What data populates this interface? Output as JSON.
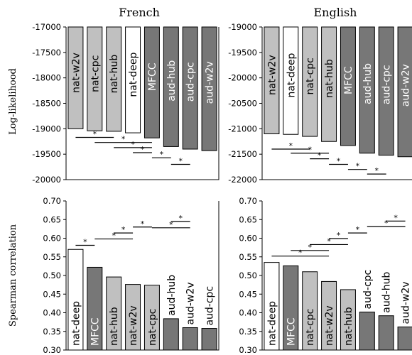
{
  "colors": {
    "white": "#ffffff",
    "light": "#c0c0c0",
    "dark": "#777777",
    "outline": "#000000"
  },
  "chart_data": [
    {
      "type": "bar",
      "title": "French",
      "ylabel": "Log-likelihood",
      "ylim": [
        -20000,
        -17000
      ],
      "yticks": [
        -17000,
        -17500,
        -18000,
        -18500,
        -19000,
        -19500,
        -20000
      ],
      "ytick_labels": [
        "-17000",
        "-17500",
        "-18000",
        "-18500",
        "-19000",
        "-19500",
        "-20000"
      ],
      "categories": [
        "nat-w2v",
        "nat-cpc",
        "nat-hub",
        "nat-deep",
        "MFCC",
        "aud-hub",
        "aud-cpc",
        "aud-w2v"
      ],
      "values": [
        -19000,
        -19040,
        -19050,
        -19080,
        -19180,
        -19350,
        -19400,
        -19430
      ],
      "bar_colors": [
        "light",
        "light",
        "light",
        "white",
        "dark",
        "dark",
        "dark",
        "dark"
      ],
      "significance": [
        {
          "from": 0,
          "to": 2,
          "level": -19170
        },
        {
          "from": 1,
          "to": 4,
          "level": -19270
        },
        {
          "from": 2,
          "to": 4,
          "level": -19370
        },
        {
          "from": 3,
          "to": 4,
          "level": -19470
        },
        {
          "from": 4,
          "to": 5,
          "level": -19570
        },
        {
          "from": 5,
          "to": 6,
          "level": -19700
        }
      ]
    },
    {
      "type": "bar",
      "title": "English",
      "ylabel": "",
      "ylim": [
        -22000,
        -19000
      ],
      "yticks": [
        -19000,
        -19500,
        -20000,
        -20500,
        -21000,
        -21500,
        -22000
      ],
      "ytick_labels": [
        "-19000",
        "-19500",
        "-20000",
        "-20500",
        "-21000",
        "-21500",
        "-22000"
      ],
      "categories": [
        "nat-w2v",
        "nat-deep",
        "nat-cpc",
        "nat-hub",
        "MFCC",
        "aud-hub",
        "aud-cpc",
        "aud-w2v"
      ],
      "values": [
        -21100,
        -21110,
        -21150,
        -21250,
        -21330,
        -21480,
        -21520,
        -21550
      ],
      "bar_colors": [
        "light",
        "white",
        "light",
        "light",
        "dark",
        "dark",
        "dark",
        "dark"
      ],
      "significance": [
        {
          "from": 0,
          "to": 2,
          "level": -21400
        },
        {
          "from": 1,
          "to": 3,
          "level": -21480
        },
        {
          "from": 2,
          "to": 3,
          "level": -21590
        },
        {
          "from": 3,
          "to": 4,
          "level": -21700
        },
        {
          "from": 4,
          "to": 5,
          "level": -21800
        },
        {
          "from": 5,
          "to": 6,
          "level": -21890
        }
      ]
    },
    {
      "type": "bar",
      "title": "",
      "ylabel": "Spearman correlation",
      "ylim": [
        0.3,
        0.7
      ],
      "yticks": [
        0.3,
        0.35,
        0.4,
        0.45,
        0.5,
        0.55,
        0.6,
        0.65,
        0.7
      ],
      "ytick_labels": [
        "0.30",
        "0.35",
        "0.40",
        "0.45",
        "0.50",
        "0.55",
        "0.60",
        "0.65",
        "0.70"
      ],
      "categories": [
        "nat-deep",
        "MFCC",
        "nat-hub",
        "nat-w2v",
        "nat-cpc",
        "aud-hub",
        "aud-w2v",
        "aud-cpc"
      ],
      "values": [
        0.57,
        0.522,
        0.496,
        0.476,
        0.474,
        0.384,
        0.36,
        0.358
      ],
      "bar_colors": [
        "white",
        "dark",
        "light",
        "light",
        "light",
        "dark",
        "dark",
        "dark"
      ],
      "significance": [
        {
          "from": 0,
          "to": 1,
          "level": 0.581
        },
        {
          "from": 1,
          "to": 3,
          "level": 0.598
        },
        {
          "from": 2,
          "to": 3,
          "level": 0.614
        },
        {
          "from": 3,
          "to": 4,
          "level": 0.63
        },
        {
          "from": 4,
          "to": 6,
          "level": 0.628
        },
        {
          "from": 5,
          "to": 6,
          "level": 0.645
        }
      ]
    },
    {
      "type": "bar",
      "title": "",
      "ylabel": "",
      "ylim": [
        0.3,
        0.7
      ],
      "yticks": [
        0.3,
        0.35,
        0.4,
        0.45,
        0.5,
        0.55,
        0.6,
        0.65,
        0.7
      ],
      "ytick_labels": [
        "0.30",
        "0.35",
        "0.40",
        "0.45",
        "0.50",
        "0.55",
        "0.60",
        "0.65",
        "0.70"
      ],
      "categories": [
        "nat-deep",
        "MFCC",
        "nat-cpc",
        "nat-w2v",
        "nat-hub",
        "aud-cpc",
        "aud-hub",
        "aud-w2v"
      ],
      "values": [
        0.535,
        0.526,
        0.51,
        0.484,
        0.462,
        0.402,
        0.392,
        0.362
      ],
      "bar_colors": [
        "white",
        "dark",
        "light",
        "light",
        "light",
        "dark",
        "dark",
        "dark"
      ],
      "significance": [
        {
          "from": 0,
          "to": 3,
          "level": 0.552
        },
        {
          "from": 1,
          "to": 3,
          "level": 0.567
        },
        {
          "from": 2,
          "to": 4,
          "level": 0.583
        },
        {
          "from": 3,
          "to": 4,
          "level": 0.599
        },
        {
          "from": 4,
          "to": 5,
          "level": 0.614
        },
        {
          "from": 5,
          "to": 7,
          "level": 0.631
        },
        {
          "from": 6,
          "to": 7,
          "level": 0.646
        }
      ]
    }
  ]
}
